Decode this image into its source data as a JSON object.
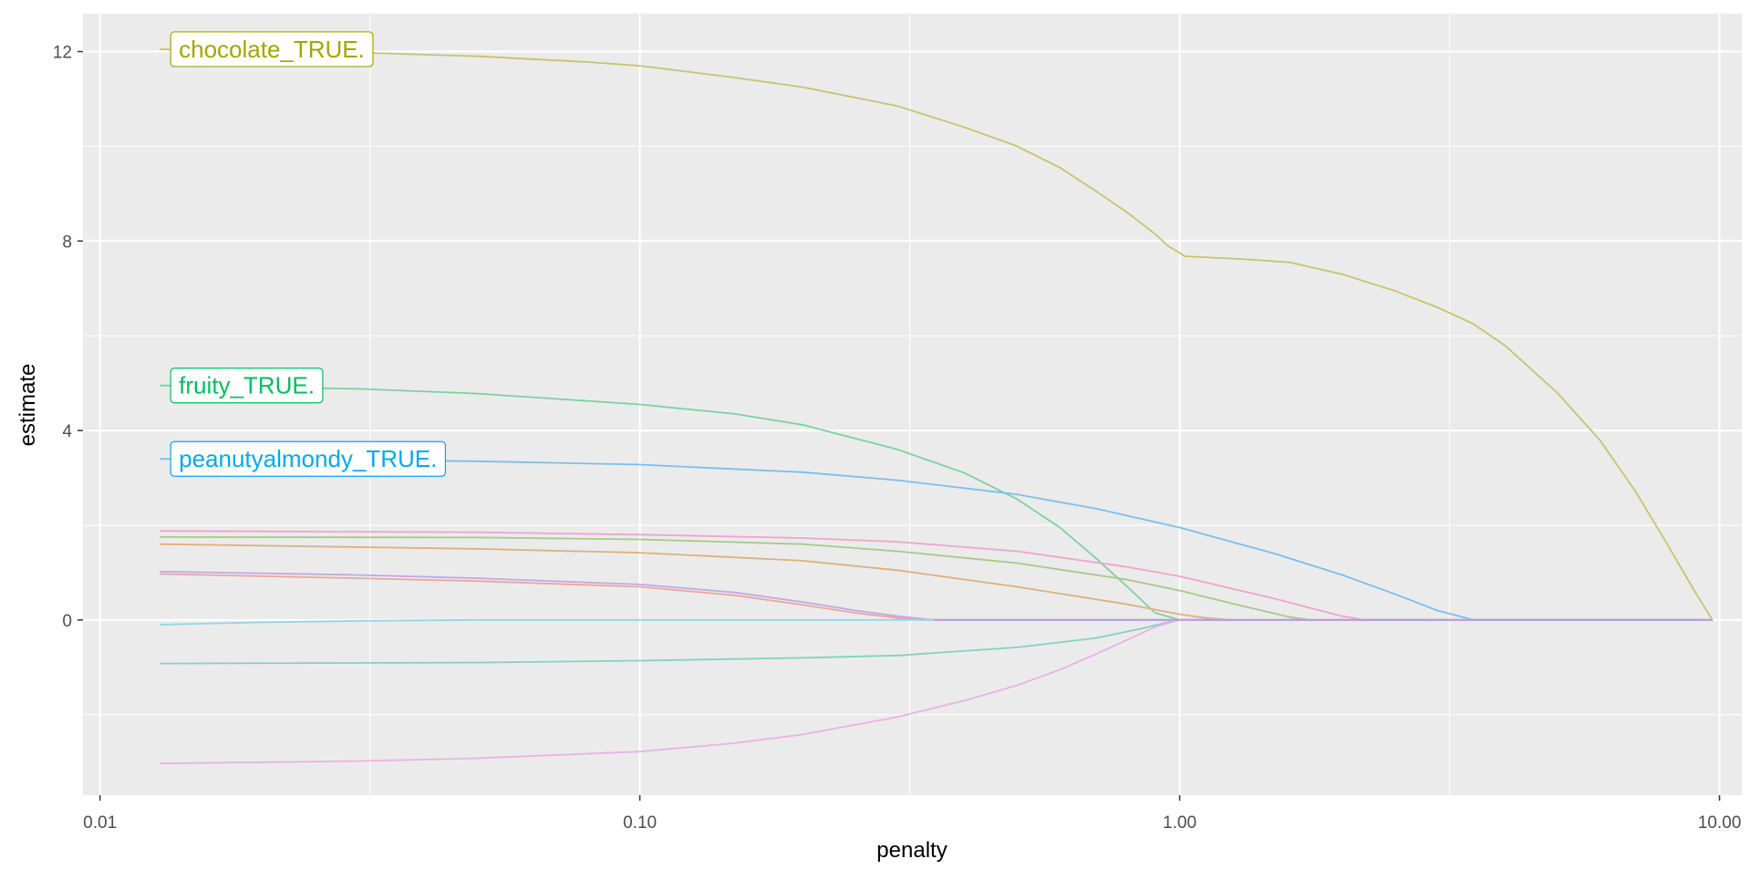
{
  "chart_data": {
    "type": "line",
    "title": "",
    "xlabel": "penalty",
    "ylabel": "estimate",
    "x_scale": "log10",
    "xlim": [
      0.0093,
      11.0
    ],
    "ylim": [
      -3.7,
      12.8
    ],
    "grid": true,
    "legend": "none",
    "x_ticks": [
      {
        "value": 0.01,
        "label": "0.01"
      },
      {
        "value": 0.1,
        "label": "0.10"
      },
      {
        "value": 1,
        "label": "1.00"
      },
      {
        "value": 10,
        "label": "10.00"
      }
    ],
    "y_ticks": [
      {
        "value": 0,
        "label": "0"
      },
      {
        "value": 4,
        "label": "4"
      },
      {
        "value": 8,
        "label": "8"
      },
      {
        "value": 12,
        "label": "12"
      }
    ],
    "colors": {
      "panel_background": "#ebebeb",
      "grid_line": "#ffffff",
      "tick_label": "#4d4d4d",
      "axis_title": "#000000"
    },
    "series": [
      {
        "color": "#c9c26f",
        "x": [
          0.0129,
          0.02,
          0.03,
          0.05,
          0.08,
          0.1,
          0.15,
          0.2,
          0.3,
          0.4,
          0.5,
          0.6,
          0.7,
          0.8,
          0.9,
          0.95,
          1.0,
          1.02,
          1.1,
          1.3,
          1.6,
          2.0,
          2.5,
          3.0,
          3.5,
          4.0,
          5.0,
          6.0,
          7.0,
          8.0,
          9.0,
          9.7
        ],
        "y": [
          12.05,
          12.02,
          11.98,
          11.9,
          11.78,
          11.7,
          11.45,
          11.25,
          10.85,
          10.4,
          10.0,
          9.55,
          9.05,
          8.6,
          8.15,
          7.9,
          7.75,
          7.68,
          7.66,
          7.62,
          7.55,
          7.3,
          6.95,
          6.6,
          6.25,
          5.8,
          4.8,
          3.8,
          2.7,
          1.6,
          0.6,
          0.0
        ]
      },
      {
        "color": "#7dd1a0",
        "x": [
          0.0129,
          0.03,
          0.05,
          0.1,
          0.15,
          0.2,
          0.3,
          0.4,
          0.5,
          0.6,
          0.7,
          0.8,
          0.9,
          1.0,
          1.05,
          9.7
        ],
        "y": [
          4.95,
          4.88,
          4.78,
          4.55,
          4.35,
          4.12,
          3.6,
          3.1,
          2.55,
          1.95,
          1.3,
          0.7,
          0.15,
          0.0,
          0.0,
          0.0
        ]
      },
      {
        "color": "#7bbfee",
        "x": [
          0.0129,
          0.05,
          0.1,
          0.2,
          0.3,
          0.5,
          0.7,
          1.0,
          1.5,
          2.0,
          2.5,
          3.0,
          3.5,
          3.6,
          9.7
        ],
        "y": [
          3.4,
          3.35,
          3.28,
          3.12,
          2.95,
          2.65,
          2.35,
          1.95,
          1.4,
          0.95,
          0.55,
          0.2,
          0.0,
          0.0,
          0.0
        ]
      },
      {
        "color": "#f0a3d0",
        "x": [
          0.0129,
          0.05,
          0.1,
          0.2,
          0.3,
          0.5,
          0.8,
          1.0,
          1.5,
          2.0,
          2.2,
          9.7
        ],
        "y": [
          1.88,
          1.85,
          1.8,
          1.73,
          1.65,
          1.45,
          1.12,
          0.92,
          0.45,
          0.08,
          0.0,
          0.0
        ]
      },
      {
        "color": "#a7c98a",
        "x": [
          0.0129,
          0.05,
          0.1,
          0.2,
          0.3,
          0.5,
          0.8,
          1.0,
          1.3,
          1.6,
          1.75,
          9.7
        ],
        "y": [
          1.75,
          1.74,
          1.7,
          1.6,
          1.45,
          1.2,
          0.85,
          0.62,
          0.3,
          0.06,
          0.0,
          0.0
        ]
      },
      {
        "color": "#ddb07e",
        "x": [
          0.0129,
          0.05,
          0.1,
          0.2,
          0.3,
          0.5,
          0.8,
          1.0,
          1.1,
          1.25,
          9.7
        ],
        "y": [
          1.6,
          1.5,
          1.42,
          1.25,
          1.05,
          0.7,
          0.33,
          0.12,
          0.05,
          0.0,
          0.0
        ]
      },
      {
        "color": "#c5a6e6",
        "x": [
          0.0129,
          0.03,
          0.05,
          0.1,
          0.15,
          0.2,
          0.25,
          0.3,
          0.35,
          9.7
        ],
        "y": [
          1.02,
          0.95,
          0.88,
          0.75,
          0.58,
          0.38,
          0.2,
          0.08,
          0.0,
          0.0
        ]
      },
      {
        "color": "#e9a79c",
        "x": [
          0.0129,
          0.03,
          0.05,
          0.1,
          0.15,
          0.2,
          0.25,
          0.3,
          0.33,
          9.7
        ],
        "y": [
          0.97,
          0.88,
          0.82,
          0.7,
          0.52,
          0.32,
          0.15,
          0.04,
          0.0,
          0.0
        ]
      },
      {
        "color": "#8fd6e6",
        "x": [
          0.0129,
          0.02,
          0.03,
          0.05,
          9.7
        ],
        "y": [
          -0.1,
          -0.05,
          -0.02,
          0.0,
          0.0
        ]
      },
      {
        "color": "#84d1c1",
        "x": [
          0.0129,
          0.05,
          0.1,
          0.2,
          0.3,
          0.5,
          0.7,
          0.85,
          0.95,
          1.0,
          1.05,
          9.7
        ],
        "y": [
          -0.92,
          -0.9,
          -0.86,
          -0.8,
          -0.75,
          -0.58,
          -0.38,
          -0.18,
          -0.05,
          0.0,
          0.0,
          0.0
        ]
      },
      {
        "color": "#ebb1e6",
        "x": [
          0.0129,
          0.03,
          0.05,
          0.1,
          0.15,
          0.2,
          0.3,
          0.4,
          0.5,
          0.6,
          0.7,
          0.8,
          0.9,
          1.0,
          1.05,
          9.7
        ],
        "y": [
          -3.03,
          -2.98,
          -2.92,
          -2.78,
          -2.6,
          -2.42,
          -2.05,
          -1.7,
          -1.38,
          -1.05,
          -0.72,
          -0.42,
          -0.15,
          0.0,
          0.0,
          0.0
        ]
      },
      {
        "color": "#b79be0",
        "x": [
          0.35,
          9.7
        ],
        "y": [
          0.0,
          0.0
        ]
      }
    ],
    "annotations": [
      {
        "text": "chocolate_TRUE.",
        "color": "#a3a500",
        "x": 0.0129,
        "y": 12.05
      },
      {
        "text": "fruity_TRUE.",
        "color": "#00bf5f",
        "x": 0.0129,
        "y": 4.95
      },
      {
        "text": "peanutyalmondy_TRUE.",
        "color": "#00a9f0",
        "x": 0.0129,
        "y": 3.4
      }
    ]
  }
}
